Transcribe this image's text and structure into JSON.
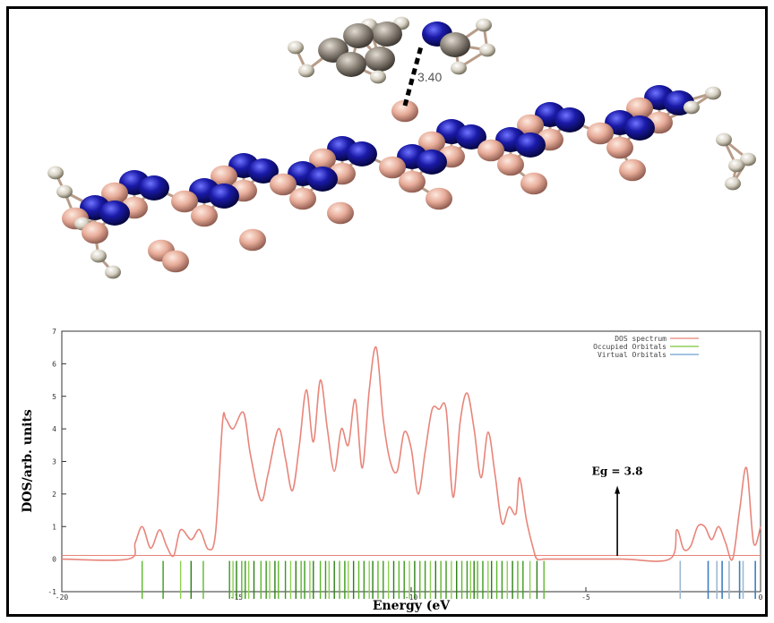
{
  "molecule": {
    "distance_label": "3.40",
    "colors": {
      "nitrogen": "#1a1aa8",
      "boron": "#e7ab98",
      "hydrogen": "#d6d0c2",
      "carbon": "#8f877c"
    }
  },
  "chart_data": {
    "type": "line",
    "xlabel": "Energy (eV",
    "ylabel": "DOS/arb. units",
    "xlim": [
      -20,
      0
    ],
    "ylim": [
      -1,
      7
    ],
    "xticks": [
      "-20",
      "-15",
      "-10",
      "-5",
      "0"
    ],
    "yticks": [
      "-1",
      "0",
      "1",
      "2",
      "3",
      "4",
      "5",
      "6",
      "7"
    ],
    "legend_position": "top-right",
    "legend": [
      {
        "label": "DOS spectrum",
        "color": "#e8857a"
      },
      {
        "label": "Occupied Orbitals",
        "color": "#7cc23c"
      },
      {
        "label": "Virtual Orbitals",
        "color": "#6f9fd0"
      }
    ],
    "annotation": {
      "text": "Eg = 3.8",
      "x": -4.1,
      "y_tail": 0.1,
      "y_head": 2.2
    },
    "dos": {
      "x": [
        -20,
        -18.1,
        -17.9,
        -17.7,
        -17.5,
        -17.4,
        -17.2,
        -17.0,
        -16.8,
        -16.6,
        -16.3,
        -16.1,
        -16.0,
        -15.8,
        -15.6,
        -15.4,
        -15.3,
        -15.1,
        -14.8,
        -14.6,
        -14.3,
        -14.1,
        -13.8,
        -13.6,
        -13.4,
        -13.2,
        -13.0,
        -12.8,
        -12.6,
        -12.4,
        -12.2,
        -12.0,
        -11.8,
        -11.6,
        -11.4,
        -11.2,
        -11.0,
        -10.8,
        -10.6,
        -10.4,
        -10.2,
        -10.0,
        -9.8,
        -9.6,
        -9.4,
        -9.2,
        -9.0,
        -8.8,
        -8.6,
        -8.4,
        -8.2,
        -8.0,
        -7.8,
        -7.6,
        -7.4,
        -7.2,
        -7.0,
        -6.9,
        -6.7,
        -6.5,
        -6.4,
        -6.2,
        -6.0,
        -5.8,
        -4.0,
        -2.6,
        -2.4,
        -2.2,
        -2.0,
        -1.8,
        -1.6,
        -1.4,
        -1.2,
        -1.0,
        -0.8,
        -0.6,
        -0.4,
        -0.2,
        0.0
      ],
      "y": [
        0.0,
        0.0,
        0.5,
        1.0,
        0.4,
        0.4,
        0.9,
        0.4,
        0.1,
        0.9,
        0.6,
        0.9,
        0.8,
        0.3,
        0.8,
        4.2,
        4.3,
        4.0,
        4.5,
        3.2,
        1.8,
        2.6,
        4.0,
        3.1,
        2.1,
        3.5,
        5.2,
        3.6,
        5.5,
        4.0,
        2.7,
        4.0,
        3.5,
        4.9,
        2.8,
        5.2,
        6.5,
        4.3,
        3.0,
        2.7,
        3.9,
        3.4,
        2.0,
        3.3,
        4.6,
        4.6,
        4.6,
        1.9,
        4.2,
        5.1,
        4.0,
        2.5,
        3.9,
        2.6,
        1.1,
        1.6,
        1.4,
        2.5,
        1.2,
        0.3,
        0.0,
        0.0,
        0.0,
        0.0,
        0.0,
        0.0,
        0.9,
        0.3,
        0.4,
        1.0,
        1.0,
        0.6,
        1.0,
        0.5,
        0.0,
        1.5,
        2.8,
        0.5,
        1.0
      ]
    },
    "occupied_orbitals": [
      -17.7,
      -17.1,
      -16.6,
      -16.3,
      -15.95,
      -15.2,
      -15.1,
      -15.0,
      -14.85,
      -14.75,
      -14.65,
      -14.5,
      -14.3,
      -14.15,
      -14.05,
      -13.9,
      -13.8,
      -13.6,
      -13.45,
      -13.3,
      -13.15,
      -13.05,
      -12.9,
      -12.8,
      -12.6,
      -12.45,
      -12.35,
      -12.2,
      -12.05,
      -11.9,
      -11.8,
      -11.65,
      -11.5,
      -11.35,
      -11.2,
      -11.1,
      -10.95,
      -10.8,
      -10.65,
      -10.5,
      -10.35,
      -10.2,
      -10.05,
      -9.9,
      -9.75,
      -9.6,
      -9.45,
      -9.3,
      -9.15,
      -9.0,
      -8.85,
      -8.7,
      -8.55,
      -8.4,
      -8.3,
      -8.2,
      -8.1,
      -7.95,
      -7.8,
      -7.7,
      -7.55,
      -7.4,
      -7.25,
      -7.1,
      -6.95,
      -6.8,
      -6.6,
      -6.4,
      -6.2
    ],
    "virtual_orbitals": [
      -2.3,
      -1.5,
      -1.25,
      -1.1,
      -0.9,
      -0.6,
      -0.5,
      -0.15
    ]
  }
}
